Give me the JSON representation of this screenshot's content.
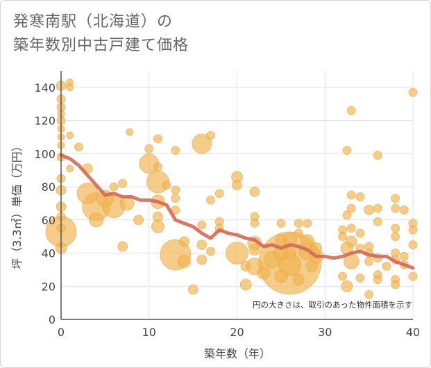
{
  "chart_data": {
    "type": "scatter",
    "title_lines": [
      "発寒南駅（北海道）の",
      "築年数別中古戸建て価格"
    ],
    "xlabel": "築年数（年）",
    "ylabel": "坪（3.3㎡）単価（万円）",
    "xlim": [
      0,
      40
    ],
    "ylim": [
      0,
      150
    ],
    "x_ticks": [
      0,
      10,
      20,
      30,
      40
    ],
    "y_ticks": [
      0,
      20,
      40,
      60,
      80,
      100,
      120,
      140
    ],
    "grid": true,
    "annotation": "円の大きさは、取引のあった物件面積を示す",
    "colors": {
      "bubble": "#f1b453",
      "bubble_edge": "#e2a13c",
      "trend": "#d26a55",
      "grid": "#dde2ec",
      "axis": "#555555"
    },
    "points": [
      {
        "x": 0,
        "y": 141,
        "s": 7
      },
      {
        "x": 0,
        "y": 133,
        "s": 6
      },
      {
        "x": 0,
        "y": 128,
        "s": 6
      },
      {
        "x": 0,
        "y": 124,
        "s": 5
      },
      {
        "x": 0,
        "y": 120,
        "s": 6
      },
      {
        "x": 0,
        "y": 115,
        "s": 5
      },
      {
        "x": 0,
        "y": 110,
        "s": 5
      },
      {
        "x": 0,
        "y": 105,
        "s": 5
      },
      {
        "x": 0,
        "y": 98,
        "s": 6
      },
      {
        "x": 0,
        "y": 85,
        "s": 6
      },
      {
        "x": 0,
        "y": 78,
        "s": 7
      },
      {
        "x": 0,
        "y": 68,
        "s": 7
      },
      {
        "x": 0,
        "y": 62,
        "s": 6
      },
      {
        "x": 0,
        "y": 55,
        "s": 6
      },
      {
        "x": 0,
        "y": 53,
        "s": 22
      },
      {
        "x": 0,
        "y": 43,
        "s": 8
      },
      {
        "x": 1,
        "y": 143,
        "s": 5
      },
      {
        "x": 1,
        "y": 140,
        "s": 5
      },
      {
        "x": 1,
        "y": 111,
        "s": 5
      },
      {
        "x": 1,
        "y": 91,
        "s": 5
      },
      {
        "x": 2,
        "y": 104,
        "s": 6
      },
      {
        "x": 3,
        "y": 91,
        "s": 7
      },
      {
        "x": 3,
        "y": 76,
        "s": 15
      },
      {
        "x": 4,
        "y": 68,
        "s": 20
      },
      {
        "x": 4,
        "y": 60,
        "s": 10
      },
      {
        "x": 5,
        "y": 73,
        "s": 12
      },
      {
        "x": 6,
        "y": 80,
        "s": 6
      },
      {
        "x": 6,
        "y": 68,
        "s": 16
      },
      {
        "x": 7,
        "y": 82,
        "s": 6
      },
      {
        "x": 7,
        "y": 44,
        "s": 7
      },
      {
        "x": 7.5,
        "y": 70,
        "s": 10
      },
      {
        "x": 7.8,
        "y": 113,
        "s": 5
      },
      {
        "x": 8.8,
        "y": 60,
        "s": 7
      },
      {
        "x": 10,
        "y": 103,
        "s": 6
      },
      {
        "x": 10,
        "y": 94,
        "s": 14
      },
      {
        "x": 11,
        "y": 109,
        "s": 6
      },
      {
        "x": 11,
        "y": 92,
        "s": 6
      },
      {
        "x": 11,
        "y": 83,
        "s": 16
      },
      {
        "x": 11,
        "y": 71,
        "s": 10
      },
      {
        "x": 11,
        "y": 62,
        "s": 7
      },
      {
        "x": 11,
        "y": 56,
        "s": 9
      },
      {
        "x": 12,
        "y": 81,
        "s": 6
      },
      {
        "x": 13,
        "y": 102,
        "s": 6
      },
      {
        "x": 13,
        "y": 78,
        "s": 6
      },
      {
        "x": 13,
        "y": 73,
        "s": 6
      },
      {
        "x": 13,
        "y": 66,
        "s": 6
      },
      {
        "x": 13,
        "y": 39,
        "s": 22
      },
      {
        "x": 14,
        "y": 47,
        "s": 7
      },
      {
        "x": 14,
        "y": 35,
        "s": 9
      },
      {
        "x": 15,
        "y": 18,
        "s": 7
      },
      {
        "x": 16,
        "y": 106,
        "s": 14
      },
      {
        "x": 16,
        "y": 57,
        "s": 6
      },
      {
        "x": 16,
        "y": 45,
        "s": 7
      },
      {
        "x": 16,
        "y": 36,
        "s": 7
      },
      {
        "x": 17,
        "y": 111,
        "s": 6
      },
      {
        "x": 17,
        "y": 72,
        "s": 6
      },
      {
        "x": 17,
        "y": 41,
        "s": 6
      },
      {
        "x": 18,
        "y": 76,
        "s": 6
      },
      {
        "x": 18,
        "y": 59,
        "s": 6
      },
      {
        "x": 18,
        "y": 55,
        "s": 6
      },
      {
        "x": 20,
        "y": 86,
        "s": 8
      },
      {
        "x": 20,
        "y": 81,
        "s": 7
      },
      {
        "x": 20,
        "y": 40,
        "s": 16
      },
      {
        "x": 21,
        "y": 32,
        "s": 7
      },
      {
        "x": 21,
        "y": 21,
        "s": 8
      },
      {
        "x": 22,
        "y": 77,
        "s": 7
      },
      {
        "x": 22,
        "y": 62,
        "s": 6
      },
      {
        "x": 22,
        "y": 58,
        "s": 6
      },
      {
        "x": 22,
        "y": 46,
        "s": 10
      },
      {
        "x": 22,
        "y": 42,
        "s": 8
      },
      {
        "x": 22,
        "y": 32,
        "s": 12
      },
      {
        "x": 23,
        "y": 28,
        "s": 9
      },
      {
        "x": 24,
        "y": 36,
        "s": 12
      },
      {
        "x": 25,
        "y": 58,
        "s": 6
      },
      {
        "x": 25,
        "y": 48,
        "s": 8
      },
      {
        "x": 25,
        "y": 40,
        "s": 10
      },
      {
        "x": 25,
        "y": 26,
        "s": 9
      },
      {
        "x": 26,
        "y": 34,
        "s": 45
      },
      {
        "x": 26,
        "y": 48,
        "s": 10
      },
      {
        "x": 26,
        "y": 40,
        "s": 8
      },
      {
        "x": 26,
        "y": 33,
        "s": 16
      },
      {
        "x": 27,
        "y": 58,
        "s": 6
      },
      {
        "x": 27,
        "y": 52,
        "s": 6
      },
      {
        "x": 27,
        "y": 24,
        "s": 8
      },
      {
        "x": 28,
        "y": 58,
        "s": 6
      },
      {
        "x": 28,
        "y": 47,
        "s": 10
      },
      {
        "x": 28,
        "y": 41,
        "s": 12
      },
      {
        "x": 28.5,
        "y": 32,
        "s": 8
      },
      {
        "x": 29,
        "y": 43,
        "s": 8
      },
      {
        "x": 29,
        "y": 38,
        "s": 10
      },
      {
        "x": 32,
        "y": 54,
        "s": 6
      },
      {
        "x": 32,
        "y": 50,
        "s": 6
      },
      {
        "x": 32,
        "y": 26,
        "s": 6
      },
      {
        "x": 32.5,
        "y": 102,
        "s": 6
      },
      {
        "x": 32.5,
        "y": 63,
        "s": 6
      },
      {
        "x": 32.5,
        "y": 43,
        "s": 9
      },
      {
        "x": 32.5,
        "y": 20,
        "s": 8
      },
      {
        "x": 33,
        "y": 126,
        "s": 6
      },
      {
        "x": 33,
        "y": 75,
        "s": 6
      },
      {
        "x": 33,
        "y": 67,
        "s": 6
      },
      {
        "x": 33,
        "y": 55,
        "s": 6
      },
      {
        "x": 33,
        "y": 47,
        "s": 8
      },
      {
        "x": 33,
        "y": 35,
        "s": 11
      },
      {
        "x": 34,
        "y": 74,
        "s": 6
      },
      {
        "x": 34,
        "y": 52,
        "s": 6
      },
      {
        "x": 34,
        "y": 43,
        "s": 6
      },
      {
        "x": 34,
        "y": 25,
        "s": 6
      },
      {
        "x": 35,
        "y": 66,
        "s": 7
      },
      {
        "x": 35,
        "y": 44,
        "s": 6
      },
      {
        "x": 35,
        "y": 40,
        "s": 6
      },
      {
        "x": 35,
        "y": 35,
        "s": 6
      },
      {
        "x": 35,
        "y": 15,
        "s": 6
      },
      {
        "x": 36,
        "y": 99,
        "s": 6
      },
      {
        "x": 36,
        "y": 67,
        "s": 6
      },
      {
        "x": 36,
        "y": 59,
        "s": 6
      },
      {
        "x": 36,
        "y": 37,
        "s": 6
      },
      {
        "x": 36,
        "y": 27,
        "s": 6
      },
      {
        "x": 36,
        "y": 24,
        "s": 6
      },
      {
        "x": 37,
        "y": 32,
        "s": 6
      },
      {
        "x": 38,
        "y": 73,
        "s": 6
      },
      {
        "x": 38,
        "y": 67,
        "s": 6
      },
      {
        "x": 38,
        "y": 55,
        "s": 6
      },
      {
        "x": 38,
        "y": 50,
        "s": 6
      },
      {
        "x": 38,
        "y": 40,
        "s": 6
      },
      {
        "x": 38,
        "y": 36,
        "s": 6
      },
      {
        "x": 38,
        "y": 24,
        "s": 6
      },
      {
        "x": 38,
        "y": 21,
        "s": 6
      },
      {
        "x": 39,
        "y": 66,
        "s": 6
      },
      {
        "x": 39,
        "y": 38,
        "s": 6
      },
      {
        "x": 39,
        "y": 33,
        "s": 6
      },
      {
        "x": 40,
        "y": 137,
        "s": 6
      },
      {
        "x": 40,
        "y": 58,
        "s": 6
      },
      {
        "x": 40,
        "y": 54,
        "s": 6
      },
      {
        "x": 40,
        "y": 45,
        "s": 6
      },
      {
        "x": 40,
        "y": 26,
        "s": 6
      }
    ],
    "trend": {
      "x": [
        0,
        1,
        2,
        3,
        4,
        5,
        6,
        7,
        8,
        9,
        10,
        11,
        12,
        13,
        14,
        15,
        16,
        17,
        18,
        19,
        20,
        21,
        22,
        23,
        24,
        25,
        26,
        27,
        28,
        29,
        30,
        31,
        32,
        33,
        34,
        35,
        36,
        37,
        38,
        39,
        40
      ],
      "y": [
        99,
        97,
        93,
        87,
        81,
        75,
        76,
        74,
        74,
        72,
        72,
        71,
        69,
        60,
        58,
        56,
        52,
        49,
        54,
        52,
        51,
        49,
        48,
        44,
        45,
        43,
        45,
        44,
        42,
        38,
        38,
        37,
        38,
        40,
        41,
        39,
        38,
        38,
        35,
        33,
        31
      ]
    }
  }
}
